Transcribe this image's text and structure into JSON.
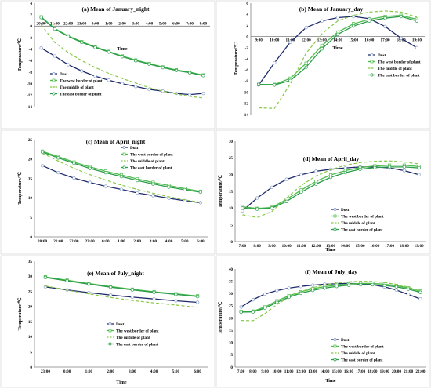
{
  "legend_names": [
    "Dust",
    "The west border of plant",
    "The middle of plant",
    "The east border of plant"
  ],
  "styles": [
    {
      "color": "#1f2a6b",
      "dash": "",
      "marker": "circle",
      "mfill": "#ffffff",
      "mstroke": "#8aa0c8",
      "width": 1.3
    },
    {
      "color": "#4cbb4c",
      "dash": "",
      "marker": "square",
      "mfill": "#ffffff",
      "mstroke": "#4cbb4c",
      "width": 1.3
    },
    {
      "color": "#86c846",
      "dash": "4,2.5",
      "marker": "none",
      "mfill": "none",
      "mstroke": "none",
      "width": 1.2
    },
    {
      "color": "#2a9d4a",
      "dash": "",
      "marker": "circle",
      "mfill": "#ffffff",
      "mstroke": "#2a9d4a",
      "width": 1.3
    }
  ],
  "chart_data": [
    {
      "type": "line",
      "title": "(a) Mean of January_night",
      "xlabel": "Time",
      "ylabel": "Temperature/℃",
      "ylim": [
        -14,
        4
      ],
      "yticks": [
        -14,
        -12,
        -10,
        -8,
        -6,
        -4,
        -2,
        0,
        2,
        4
      ],
      "categories": [
        "20:00",
        "21:00",
        "22:00",
        "23:00",
        "0:00",
        "1:00",
        "2:00",
        "3:00",
        "4:00",
        "5:00",
        "6:00",
        "7:00",
        "8:00"
      ],
      "category_labels_position": "top",
      "legend_position": "bottom-left",
      "series": [
        {
          "name": "Dust",
          "values": [
            -3.8,
            -5.2,
            -6.7,
            -7.8,
            -8.7,
            -9.4,
            -10.0,
            -10.5,
            -11.0,
            -11.3,
            -11.7,
            -11.9,
            -11.7
          ]
        },
        {
          "name": "The west border of plant",
          "values": [
            1.6,
            -0.4,
            -1.7,
            -2.7,
            -3.6,
            -4.4,
            -5.2,
            -5.9,
            -6.5,
            -7.1,
            -7.6,
            -8.0,
            -8.5
          ]
        },
        {
          "name": "The middle of plant",
          "values": [
            0.2,
            -2.8,
            -4.6,
            -6.0,
            -7.2,
            -8.2,
            -9.1,
            -9.9,
            -10.7,
            -11.3,
            -11.8,
            -12.2,
            -12.5
          ]
        },
        {
          "name": "The east border of plant",
          "values": [
            1.5,
            -0.5,
            -1.8,
            -2.8,
            -3.7,
            -4.5,
            -5.3,
            -6.0,
            -6.6,
            -7.2,
            -7.7,
            -8.1,
            -8.6
          ]
        }
      ]
    },
    {
      "type": "line",
      "title": "(b) Mean of January_day",
      "xlabel": "Time",
      "ylabel": "Temperature/℃",
      "ylim": [
        -14,
        6
      ],
      "yticks": [
        -14,
        -12,
        -10,
        -8,
        -6,
        -4,
        -2,
        0,
        2,
        4,
        6
      ],
      "categories": [
        "9:00",
        "10:00",
        "11:00",
        "12:00",
        "13:00",
        "14:00",
        "15:00",
        "16:00",
        "17:00",
        "18:00",
        "19:00"
      ],
      "category_labels_position": "middle",
      "legend_position": "center",
      "series": [
        {
          "name": "Dust",
          "values": [
            -8.7,
            -4.7,
            -1.0,
            1.6,
            2.8,
            3.4,
            3.6,
            3.2,
            1.8,
            -0.3,
            -2.0
          ]
        },
        {
          "name": "The west border of plant",
          "values": [
            -8.6,
            -8.6,
            -7.5,
            -4.8,
            -1.6,
            0.8,
            2.3,
            3.1,
            3.6,
            3.8,
            3.1
          ]
        },
        {
          "name": "The middle of plant",
          "values": [
            -12.8,
            -12.9,
            -8.5,
            -3.0,
            0.5,
            2.8,
            3.8,
            4.4,
            4.6,
            4.4,
            3.5
          ]
        },
        {
          "name": "The east border of plant",
          "values": [
            -8.6,
            -8.7,
            -7.9,
            -5.5,
            -2.2,
            0.4,
            1.9,
            2.8,
            3.3,
            3.6,
            2.8
          ]
        }
      ]
    },
    {
      "type": "line",
      "title": "(c) Mean of April_night",
      "xlabel": "",
      "ylabel": "Temperature/℃",
      "ylim": [
        0,
        25
      ],
      "yticks": [
        0,
        5,
        10,
        15,
        20,
        25
      ],
      "categories": [
        "20:00",
        "21:00",
        "22:00",
        "23:00",
        "0:00",
        "1:00",
        "2:00",
        "3:00",
        "4:00",
        "5:00",
        "6:00"
      ],
      "category_labels_position": "bottom",
      "legend_position": "top-right",
      "series": [
        {
          "name": "Dust",
          "values": [
            18.3,
            16.5,
            15.1,
            14.0,
            13.0,
            12.2,
            11.3,
            10.6,
            9.9,
            9.3,
            8.8
          ]
        },
        {
          "name": "The west border of plant",
          "values": [
            22.0,
            20.6,
            19.2,
            18.0,
            16.9,
            15.9,
            14.9,
            14.0,
            13.2,
            12.4,
            11.7
          ]
        },
        {
          "name": "The middle of plant",
          "values": [
            21.5,
            19.5,
            17.6,
            16.0,
            14.6,
            13.3,
            12.2,
            11.2,
            10.3,
            9.5,
            8.9
          ]
        },
        {
          "name": "The east border of plant",
          "values": [
            21.8,
            20.3,
            18.9,
            17.6,
            16.5,
            15.5,
            14.5,
            13.6,
            12.8,
            12.1,
            11.5
          ]
        }
      ]
    },
    {
      "type": "line",
      "title": "(d) Mean of April_day",
      "xlabel": "Time",
      "ylabel": "Temperature/℃",
      "ylim": [
        0,
        30
      ],
      "yticks": [
        0,
        5,
        10,
        15,
        20,
        25,
        30
      ],
      "categories": [
        "7:00",
        "8:00",
        "9:00",
        "10:00",
        "11:00",
        "12:00",
        "13:00",
        "14:00",
        "15:00",
        "16:00",
        "17:00",
        "18:00",
        "19:00"
      ],
      "category_labels_position": "bottom",
      "legend_position": "bottom-center",
      "series": [
        {
          "name": "Dust",
          "values": [
            9.2,
            13.0,
            16.2,
            18.6,
            20.0,
            21.0,
            21.6,
            22.0,
            22.3,
            22.3,
            22.0,
            21.2,
            20.0
          ]
        },
        {
          "name": "The west border of plant",
          "values": [
            10.4,
            9.9,
            10.2,
            12.6,
            15.4,
            18.0,
            19.9,
            21.2,
            22.1,
            22.6,
            22.8,
            22.8,
            22.4
          ]
        },
        {
          "name": "The middle of plant",
          "values": [
            8.0,
            7.2,
            9.0,
            13.0,
            16.8,
            19.6,
            21.5,
            22.8,
            23.6,
            24.0,
            24.1,
            23.8,
            23.2
          ]
        },
        {
          "name": "The east border of plant",
          "values": [
            10.0,
            9.7,
            10.0,
            12.0,
            14.8,
            17.2,
            19.2,
            20.6,
            21.6,
            22.1,
            22.3,
            22.3,
            22.0
          ]
        }
      ]
    },
    {
      "type": "line",
      "title": "(e) Mean of July_night",
      "xlabel": "Time",
      "ylabel": "Temperature/℃",
      "ylim": [
        0,
        35
      ],
      "yticks": [
        0,
        5,
        10,
        15,
        20,
        25,
        30,
        35
      ],
      "categories": [
        "23:00",
        "0:00",
        "1:00",
        "2:00",
        "3:00",
        "4:00",
        "5:00",
        "6:00"
      ],
      "category_labels_position": "bottom",
      "legend_position": "bottom-right",
      "series": [
        {
          "name": "Dust",
          "values": [
            26.5,
            25.5,
            24.6,
            23.8,
            23.1,
            22.5,
            21.9,
            21.4
          ]
        },
        {
          "name": "The west border of plant",
          "values": [
            29.8,
            28.7,
            27.6,
            26.6,
            25.7,
            24.9,
            24.2,
            23.5
          ]
        },
        {
          "name": "The middle of plant",
          "values": [
            26.8,
            25.4,
            24.2,
            23.0,
            22.0,
            21.2,
            20.5,
            19.7
          ]
        },
        {
          "name": "The east border of plant",
          "values": [
            29.6,
            28.5,
            27.4,
            26.4,
            25.5,
            24.7,
            24.0,
            23.3
          ]
        }
      ]
    },
    {
      "type": "line",
      "title": "(f) Mean of July_day",
      "xlabel": "Time",
      "ylabel": "Temperature/℃",
      "ylim": [
        0,
        40
      ],
      "yticks": [
        0,
        5,
        10,
        15,
        20,
        25,
        30,
        35,
        40
      ],
      "categories": [
        "7:00",
        "8:00",
        "9:00",
        "10:00",
        "11:00",
        "12:00",
        "13:00",
        "14:00",
        "15:00",
        "16:00",
        "17:00",
        "18:00",
        "19:00",
        "20:00",
        "21:00",
        "22:00"
      ],
      "category_labels_position": "bottom",
      "legend_position": "bottom-center",
      "series": [
        {
          "name": "Dust",
          "values": [
            24.5,
            27.5,
            29.8,
            31.2,
            32.2,
            32.9,
            33.4,
            33.8,
            34.0,
            34.1,
            34.0,
            33.6,
            32.7,
            31.4,
            29.6,
            27.8
          ]
        },
        {
          "name": "The west border of plant",
          "values": [
            22.7,
            22.8,
            24.5,
            27.0,
            29.1,
            30.7,
            31.9,
            32.8,
            33.4,
            33.9,
            34.1,
            34.1,
            33.8,
            33.2,
            32.3,
            31.0
          ]
        },
        {
          "name": "The middle of plant",
          "values": [
            19.0,
            18.9,
            21.8,
            25.5,
            28.5,
            30.8,
            32.4,
            33.5,
            34.3,
            34.8,
            35.0,
            34.9,
            34.5,
            33.7,
            32.6,
            31.0
          ]
        },
        {
          "name": "The east border of plant",
          "values": [
            22.4,
            22.5,
            24.0,
            26.4,
            28.5,
            30.1,
            31.3,
            32.2,
            32.9,
            33.4,
            33.6,
            33.6,
            33.3,
            32.7,
            31.8,
            30.5
          ]
        }
      ]
    }
  ]
}
